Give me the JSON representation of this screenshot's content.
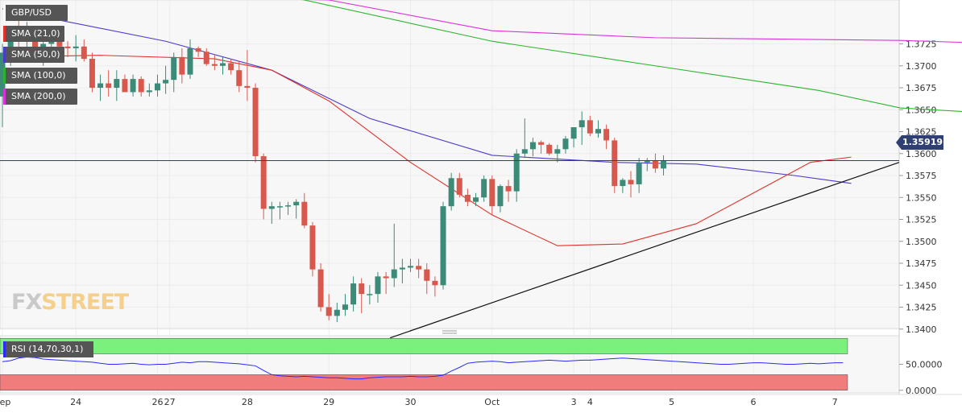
{
  "legend": [
    {
      "label": "GBP/USD",
      "color": "#ffffff"
    },
    {
      "label": "SMA (21,0)",
      "color": "#e0322b"
    },
    {
      "label": "SMA (50,0)",
      "color": "#4b3bc9"
    },
    {
      "label": "SMA (100,0)",
      "color": "#2fb32f"
    },
    {
      "label": "SMA (200,0)",
      "color": "#d932d9"
    }
  ],
  "price_tag": "1.35919",
  "rsi_label": "RSI (14,70,30,1)",
  "logo": {
    "fx": "FX",
    "street": "STREET"
  },
  "chart_data": [
    {
      "type": "candlestick",
      "title": "GBP/USD",
      "ylim": [
        1.3375,
        1.375
      ],
      "y_ticks": [
        "1.3725",
        "1.3700",
        "1.3675",
        "1.3650",
        "1.3625",
        "1.3600",
        "1.3575",
        "1.3550",
        "1.3525",
        "1.3500",
        "1.3475",
        "1.3450",
        "1.3425",
        "1.3400"
      ],
      "x_tick_labels": [
        {
          "bar": 0,
          "label": "Sep"
        },
        {
          "bar": 9,
          "label": "24"
        },
        {
          "bar": 19,
          "label": "26"
        },
        {
          "bar": 20.5,
          "label": "27"
        },
        {
          "bar": 30,
          "label": "28"
        },
        {
          "bar": 40,
          "label": "29"
        },
        {
          "bar": 50,
          "label": "30"
        },
        {
          "bar": 60,
          "label": "Oct"
        },
        {
          "bar": 70,
          "label": "3"
        },
        {
          "bar": 72,
          "label": "4"
        },
        {
          "bar": 82,
          "label": "5"
        },
        {
          "bar": 92,
          "label": "6"
        },
        {
          "bar": 102,
          "label": "7"
        }
      ],
      "up_color": "#3c8a78",
      "down_color": "#d9584e",
      "candles": [
        [
          1.3665,
          1.3725,
          1.363,
          1.3715
        ],
        [
          1.3715,
          1.3745,
          1.37,
          1.374
        ],
        [
          1.374,
          1.376,
          1.372,
          1.3735
        ],
        [
          1.3735,
          1.375,
          1.371,
          1.374
        ],
        [
          1.374,
          1.3745,
          1.3715,
          1.372
        ],
        [
          1.372,
          1.3735,
          1.37,
          1.3725
        ],
        [
          1.3725,
          1.374,
          1.371,
          1.373
        ],
        [
          1.373,
          1.3735,
          1.3715,
          1.3722
        ],
        [
          1.3722,
          1.3728,
          1.371,
          1.372
        ],
        [
          1.372,
          1.3735,
          1.3705,
          1.3722
        ],
        [
          1.3722,
          1.373,
          1.3705,
          1.3708
        ],
        [
          1.3708,
          1.3715,
          1.367,
          1.3675
        ],
        [
          1.3675,
          1.369,
          1.366,
          1.368
        ],
        [
          1.368,
          1.3695,
          1.3665,
          1.3675
        ],
        [
          1.3675,
          1.3695,
          1.366,
          1.3685
        ],
        [
          1.3685,
          1.369,
          1.367,
          1.367
        ],
        [
          1.367,
          1.369,
          1.3665,
          1.3685
        ],
        [
          1.3685,
          1.3688,
          1.3665,
          1.367
        ],
        [
          1.367,
          1.368,
          1.3665,
          1.3672
        ],
        [
          1.3672,
          1.369,
          1.3665,
          1.368
        ],
        [
          1.368,
          1.37,
          1.3668,
          1.3684
        ],
        [
          1.3684,
          1.3715,
          1.367,
          1.371
        ],
        [
          1.371,
          1.372,
          1.368,
          1.369
        ],
        [
          1.369,
          1.373,
          1.3685,
          1.372
        ],
        [
          1.372,
          1.3722,
          1.371,
          1.3716
        ],
        [
          1.3716,
          1.372,
          1.37,
          1.3702
        ],
        [
          1.3702,
          1.3712,
          1.3695,
          1.37
        ],
        [
          1.37,
          1.371,
          1.369,
          1.3703
        ],
        [
          1.3703,
          1.3708,
          1.369,
          1.3695
        ],
        [
          1.3695,
          1.3705,
          1.367,
          1.3677
        ],
        [
          1.3677,
          1.3718,
          1.366,
          1.3675
        ],
        [
          1.3675,
          1.368,
          1.359,
          1.3597
        ],
        [
          1.3597,
          1.36,
          1.3525,
          1.3537
        ],
        [
          1.3537,
          1.3545,
          1.352,
          1.354
        ],
        [
          1.354,
          1.3545,
          1.3525,
          1.354
        ],
        [
          1.354,
          1.3545,
          1.353,
          1.3541
        ],
        [
          1.3541,
          1.3548,
          1.3526,
          1.3545
        ],
        [
          1.3545,
          1.3555,
          1.3515,
          1.3518
        ],
        [
          1.3518,
          1.3522,
          1.346,
          1.3468
        ],
        [
          1.3468,
          1.3475,
          1.342,
          1.3425
        ],
        [
          1.3425,
          1.344,
          1.341,
          1.3415
        ],
        [
          1.3415,
          1.343,
          1.3408,
          1.3422
        ],
        [
          1.3422,
          1.344,
          1.3415,
          1.3428
        ],
        [
          1.3428,
          1.346,
          1.342,
          1.3452
        ],
        [
          1.3452,
          1.3458,
          1.3418,
          1.344
        ],
        [
          1.344,
          1.345,
          1.3428,
          1.344
        ],
        [
          1.344,
          1.3465,
          1.343,
          1.346
        ],
        [
          1.346,
          1.3465,
          1.344,
          1.3458
        ],
        [
          1.3458,
          1.352,
          1.3448,
          1.3468
        ],
        [
          1.3468,
          1.348,
          1.3452,
          1.347
        ],
        [
          1.347,
          1.348,
          1.3465,
          1.3472
        ],
        [
          1.3472,
          1.348,
          1.3458,
          1.3468
        ],
        [
          1.3468,
          1.3475,
          1.344,
          1.3455
        ],
        [
          1.3455,
          1.346,
          1.3437,
          1.345
        ],
        [
          1.345,
          1.3545,
          1.3445,
          1.354
        ],
        [
          1.354,
          1.3578,
          1.3535,
          1.3572
        ],
        [
          1.3572,
          1.3578,
          1.355,
          1.3553
        ],
        [
          1.3553,
          1.356,
          1.354,
          1.3545
        ],
        [
          1.3545,
          1.3555,
          1.354,
          1.355
        ],
        [
          1.355,
          1.3575,
          1.3545,
          1.3571
        ],
        [
          1.3571,
          1.3575,
          1.353,
          1.354
        ],
        [
          1.354,
          1.3565,
          1.3533,
          1.3563
        ],
        [
          1.3563,
          1.357,
          1.3545,
          1.3557
        ],
        [
          1.3557,
          1.3605,
          1.3545,
          1.36
        ],
        [
          1.36,
          1.364,
          1.3595,
          1.3605
        ],
        [
          1.3605,
          1.3618,
          1.3597,
          1.3613
        ],
        [
          1.3613,
          1.3615,
          1.36,
          1.361
        ],
        [
          1.361,
          1.3612,
          1.3598,
          1.36
        ],
        [
          1.36,
          1.361,
          1.359,
          1.3605
        ],
        [
          1.3605,
          1.362,
          1.36,
          1.3617
        ],
        [
          1.3617,
          1.363,
          1.3607,
          1.363
        ],
        [
          1.363,
          1.3648,
          1.361,
          1.3638
        ],
        [
          1.3638,
          1.3643,
          1.362,
          1.3623
        ],
        [
          1.3623,
          1.3638,
          1.3618,
          1.3628
        ],
        [
          1.3628,
          1.3633,
          1.3605,
          1.3615
        ],
        [
          1.3615,
          1.3618,
          1.3555,
          1.3563
        ],
        [
          1.3563,
          1.3572,
          1.3555,
          1.357
        ],
        [
          1.357,
          1.358,
          1.355,
          1.3565
        ],
        [
          1.3565,
          1.3595,
          1.3555,
          1.359
        ],
        [
          1.359,
          1.3595,
          1.358,
          1.3592
        ],
        [
          1.3592,
          1.36,
          1.3578,
          1.3583
        ],
        [
          1.3583,
          1.3598,
          1.3575,
          1.3592
        ]
      ]
    },
    {
      "type": "line",
      "title": "RSI (14,70,30,1)",
      "y_ticks": [
        "50.0000",
        "0.0000"
      ],
      "ylim": [
        -5,
        105
      ],
      "overbought": 70,
      "oversold": 30,
      "values": [
        55,
        57,
        62,
        64,
        63,
        60,
        59,
        58,
        57,
        56,
        55,
        54,
        52,
        50,
        50,
        51,
        52,
        50,
        49,
        50,
        50,
        52,
        54,
        53,
        55,
        55,
        54,
        53,
        52,
        51,
        49,
        47,
        38,
        30,
        28,
        27,
        26,
        27,
        26,
        25,
        24,
        24,
        23,
        22,
        22,
        24,
        25,
        26,
        26,
        26,
        27,
        26,
        26,
        27,
        29,
        37,
        44,
        52,
        54,
        55,
        56,
        55,
        53,
        54,
        55,
        56,
        57,
        58,
        57,
        56,
        57,
        58,
        58,
        59,
        60,
        61,
        62,
        61,
        60,
        59,
        58,
        57,
        56,
        55,
        54,
        53,
        52,
        51,
        50,
        50,
        51,
        52,
        53,
        53,
        52,
        51,
        50,
        50,
        51,
        52,
        51,
        52,
        53,
        53
      ]
    }
  ]
}
